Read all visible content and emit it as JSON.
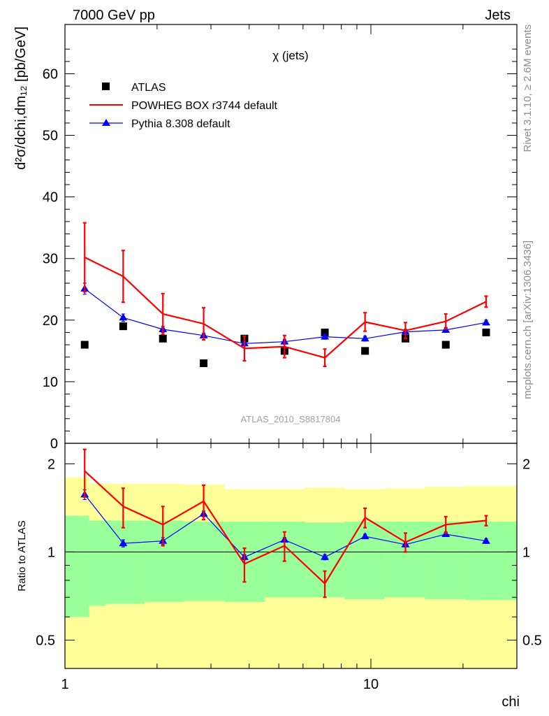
{
  "header": {
    "left": "7000 GeV pp",
    "right": "Jets"
  },
  "side_labels": {
    "rivet": "Rivet 3.1.10, ≥ 2.6M events",
    "mcplots": "mcplots.cern.ch [arXiv:1306.3436]"
  },
  "watermark": "ATLAS_2010_S8817804",
  "legend": {
    "atlas": "ATLAS",
    "powheg": "POWHEG BOX r3744 default",
    "pythia": "Pythia 8.308 default"
  },
  "colors": {
    "atlas": "#000000",
    "powheg": "#ff0000",
    "pythia": "#0000ff",
    "band_inner": "#99ff99",
    "band_outer": "#ffff99"
  },
  "chart_data": [
    {
      "type": "line",
      "title": "χ (jets)",
      "xlabel": "chi",
      "ylabel": "d²σ/dchi,dm₁₂ [pb/GeV]",
      "xscale": "log",
      "xlim": [
        1,
        30
      ],
      "ylim": [
        0,
        68
      ],
      "yticks": [
        0,
        10,
        20,
        30,
        40,
        50,
        60
      ],
      "xticks": [
        1,
        10
      ],
      "x": [
        1.16,
        1.55,
        2.09,
        2.84,
        3.86,
        5.22,
        7.07,
        9.57,
        12.97,
        17.57,
        23.8
      ],
      "series": [
        {
          "name": "ATLAS",
          "marker": "square",
          "values": [
            16,
            19,
            17,
            13,
            17,
            15,
            18,
            15,
            17,
            16,
            18
          ]
        },
        {
          "name": "POWHEG BOX r3744 default",
          "values": [
            30.2,
            27.1,
            21.0,
            19.4,
            15.4,
            15.7,
            13.9,
            19.7,
            18.3,
            19.8,
            23.0
          ],
          "err": [
            5.6,
            4.2,
            3.3,
            2.6,
            2.0,
            1.8,
            1.4,
            1.5,
            1.3,
            1.2,
            0.9
          ]
        },
        {
          "name": "Pythia 8.308 default",
          "marker": "triangle",
          "values": [
            25.1,
            20.4,
            18.5,
            17.5,
            16.2,
            16.5,
            17.3,
            17.0,
            18.1,
            18.4,
            19.6
          ],
          "err": [
            0.9,
            0.6,
            0.5,
            0.4,
            0.4,
            0.4,
            0.4,
            0.4,
            0.4,
            0.4,
            0.4
          ]
        }
      ]
    },
    {
      "type": "line",
      "ylabel": "Ratio to ATLAS",
      "xlabel": "chi",
      "xscale": "log",
      "yscale": "log",
      "xlim": [
        1,
        30
      ],
      "ylim": [
        0.4,
        2.35
      ],
      "yticks": [
        0.5,
        1,
        2
      ],
      "x": [
        1.16,
        1.55,
        2.09,
        2.84,
        3.86,
        5.22,
        7.07,
        9.57,
        12.97,
        17.57,
        23.8
      ],
      "series": [
        {
          "name": "POWHEG BOX r3744 default",
          "values": [
            1.89,
            1.43,
            1.24,
            1.49,
            0.91,
            1.05,
            0.78,
            1.31,
            1.08,
            1.24,
            1.28
          ],
          "err": [
            0.35,
            0.22,
            0.19,
            0.2,
            0.12,
            0.12,
            0.08,
            0.1,
            0.08,
            0.08,
            0.05
          ]
        },
        {
          "name": "Pythia 8.308 default",
          "values": [
            1.57,
            1.07,
            1.09,
            1.35,
            0.96,
            1.1,
            0.96,
            1.13,
            1.06,
            1.15,
            1.09
          ],
          "err": [
            0.06,
            0.03,
            0.03,
            0.03,
            0.02,
            0.02,
            0.02,
            0.02,
            0.02,
            0.02,
            0.02
          ]
        }
      ],
      "bands": {
        "edges": [
          1,
          1.2,
          1.36,
          1.82,
          2.45,
          3.32,
          4.5,
          6.1,
          8.2,
          11.1,
          15.0,
          20.4,
          30
        ],
        "inner_low": [
          0.6,
          0.655,
          0.665,
          0.675,
          0.68,
          0.675,
          0.7,
          0.7,
          0.69,
          0.7,
          0.69,
          0.685
        ],
        "inner_high": [
          1.33,
          1.28,
          1.28,
          1.28,
          1.27,
          1.27,
          1.27,
          1.26,
          1.27,
          1.27,
          1.27,
          1.27
        ],
        "outer_low": [
          0.4,
          0.4,
          0.4,
          0.4,
          0.4,
          0.4,
          0.4,
          0.4,
          0.4,
          0.4,
          0.4,
          0.4
        ],
        "outer_high": [
          1.8,
          1.71,
          1.71,
          1.71,
          1.7,
          1.64,
          1.64,
          1.66,
          1.64,
          1.65,
          1.67,
          1.68
        ]
      }
    }
  ]
}
